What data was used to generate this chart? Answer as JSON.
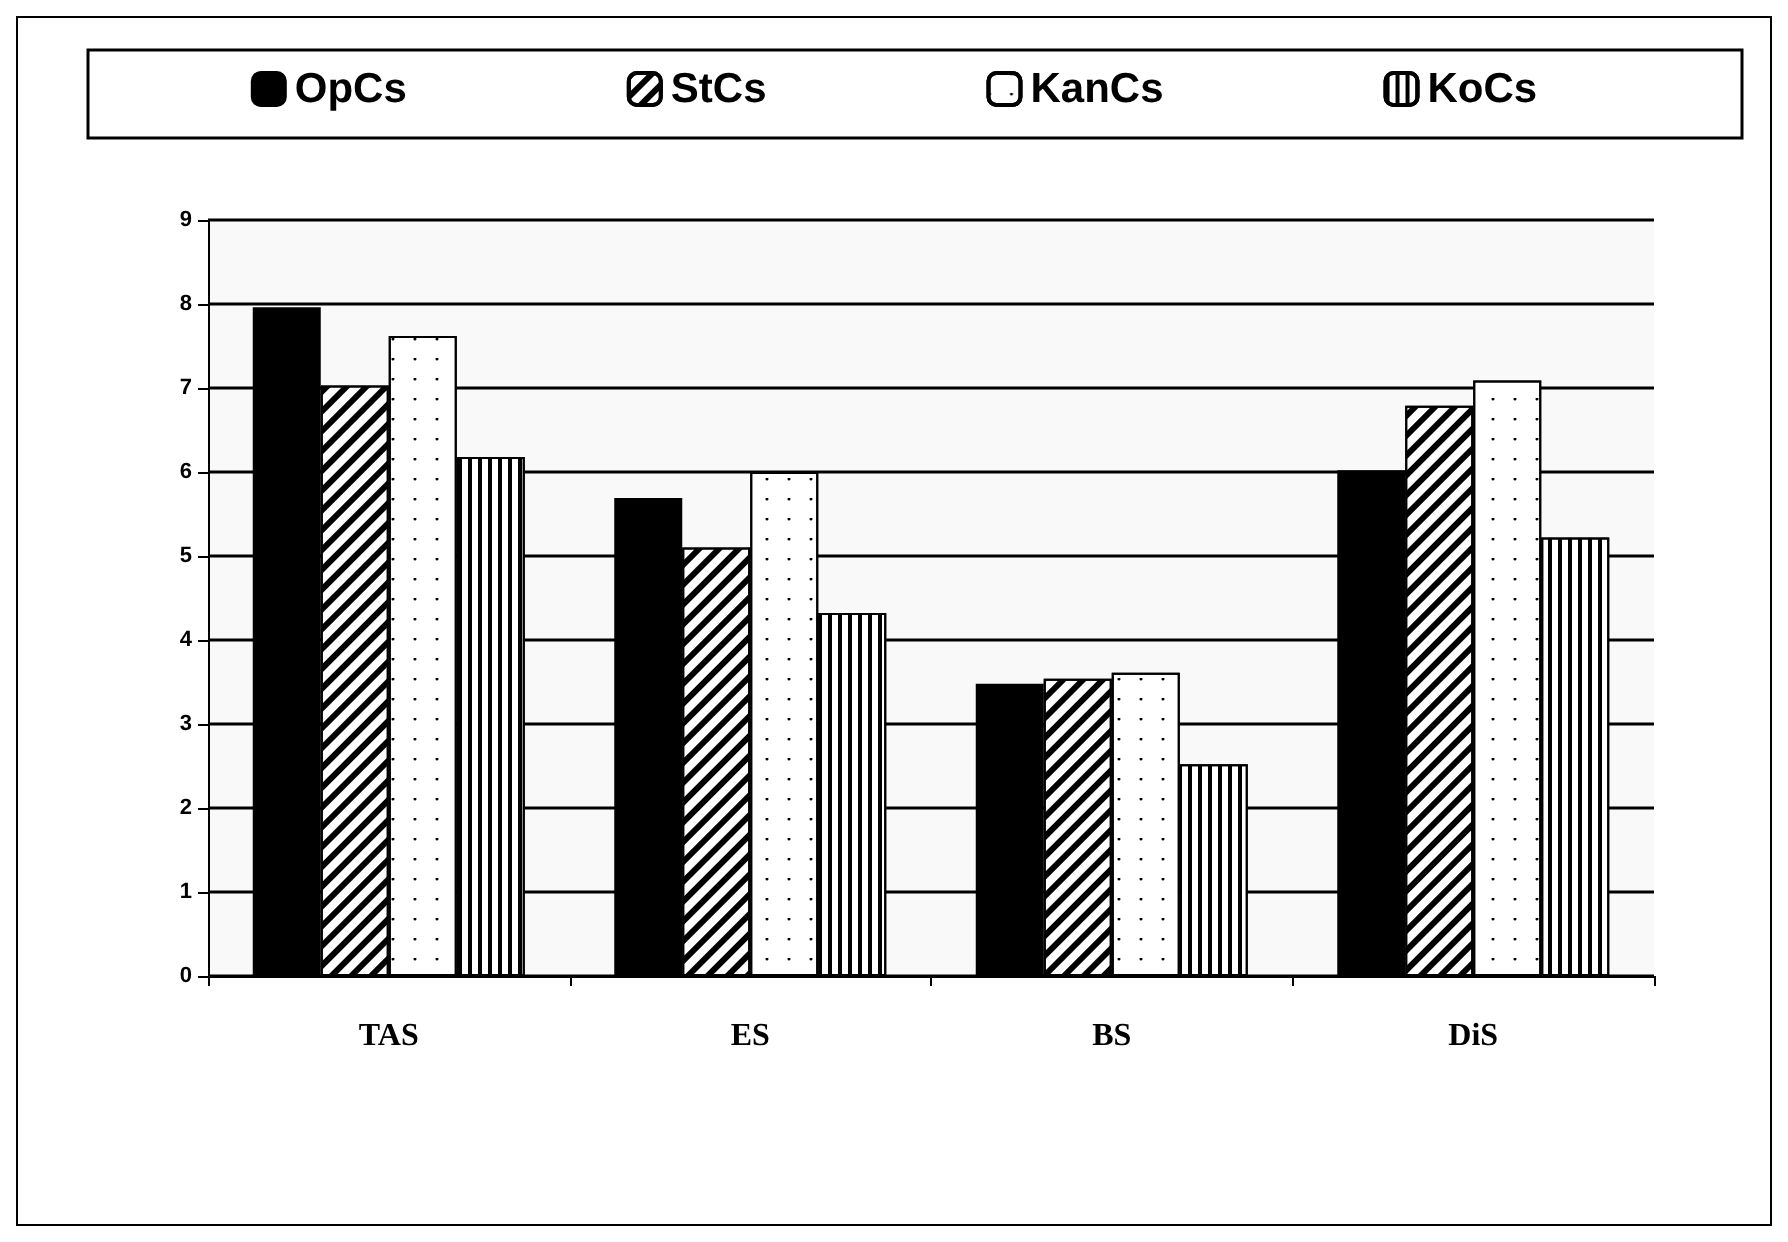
{
  "chart_data": {
    "type": "bar",
    "categories": [
      "TAS",
      "ES",
      "BS",
      "DiS"
    ],
    "series": [
      {
        "name": "OpCs",
        "color": "#000000",
        "values": [
          7.96,
          5.69,
          3.48,
          6.02
        ]
      },
      {
        "name": "StCs",
        "color": "#ffffff",
        "values": [
          7.03,
          5.1,
          3.54,
          6.79
        ]
      },
      {
        "name": "KanCs",
        "color": "#ffffff",
        "values": [
          7.62,
          6.0,
          3.61,
          7.09
        ]
      },
      {
        "name": "KoCs",
        "color": "#ffffff",
        "values": [
          6.18,
          4.32,
          2.52,
          5.22
        ]
      }
    ],
    "ylim": [
      0,
      9
    ],
    "yticks": [
      0,
      1,
      2,
      3,
      4,
      5,
      6,
      7,
      8,
      9
    ],
    "grid": "y",
    "legend": "top"
  }
}
